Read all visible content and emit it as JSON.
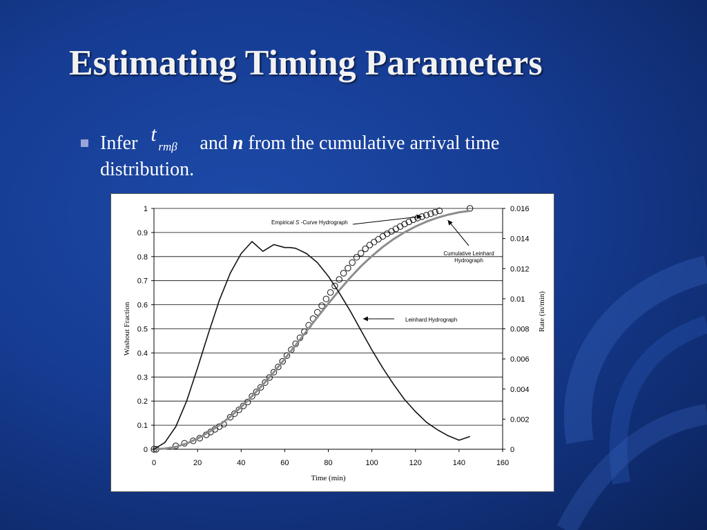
{
  "slide": {
    "title": "Estimating Timing Parameters",
    "bullet": {
      "pre": "Infer ",
      "math_symbol": "t",
      "math_subscript": "rmβ",
      "and_text": " and ",
      "n_symbol": "n",
      "post": " from the cumulative arrival time distribution."
    }
  },
  "chart_data": {
    "type": "scatter",
    "xlabel": "Time (min)",
    "ylabel": "Washout Fraction",
    "y2label": "Rate (in/min)",
    "xlim": [
      0,
      160
    ],
    "ylim": [
      0,
      1
    ],
    "y2lim": [
      0,
      0.016
    ],
    "x_ticks": [
      "0",
      "20",
      "40",
      "60",
      "80",
      "100",
      "120",
      "140",
      "160"
    ],
    "y_ticks": [
      "0",
      "0.1",
      "0.2",
      "0.3",
      "0.4",
      "0.5",
      "0.6",
      "0.7",
      "0.8",
      "0.9",
      "1"
    ],
    "y2_ticks": [
      "0",
      "0.002",
      "0.004",
      "0.006",
      "0.008",
      "0.01",
      "0.012",
      "0.014",
      "0.016"
    ],
    "grid": "horizontal",
    "series": [
      {
        "name": "Empirical S -Curve Hydrograph",
        "kind": "points",
        "axis": "left",
        "x": [
          0,
          1,
          10,
          14,
          18,
          21,
          24,
          26,
          28,
          30,
          32,
          35,
          37,
          39,
          41,
          43,
          45,
          47,
          49,
          51,
          53,
          55,
          57,
          59,
          61,
          63,
          65,
          67,
          69,
          71,
          73,
          75,
          77,
          79,
          81,
          83,
          85,
          87,
          89,
          91,
          93,
          95,
          97,
          99,
          101,
          103,
          105,
          107,
          109,
          111,
          113,
          115,
          117,
          119,
          121,
          123,
          125,
          127,
          129,
          131,
          145
        ],
        "y": [
          0,
          0,
          0.014,
          0.025,
          0.035,
          0.046,
          0.06,
          0.072,
          0.083,
          0.094,
          0.104,
          0.133,
          0.148,
          0.164,
          0.18,
          0.196,
          0.22,
          0.238,
          0.257,
          0.277,
          0.298,
          0.32,
          0.342,
          0.365,
          0.389,
          0.413,
          0.438,
          0.463,
          0.488,
          0.515,
          0.542,
          0.569,
          0.596,
          0.624,
          0.651,
          0.678,
          0.705,
          0.731,
          0.752,
          0.775,
          0.797,
          0.814,
          0.832,
          0.848,
          0.86,
          0.872,
          0.884,
          0.895,
          0.905,
          0.915,
          0.925,
          0.935,
          0.944,
          0.953,
          0.96,
          0.966,
          0.972,
          0.978,
          0.984,
          0.99,
          1.0
        ]
      },
      {
        "name": "Cumulative Leinhard Hydrograph",
        "kind": "line",
        "axis": "left",
        "x": [
          0,
          5,
          10,
          15,
          20,
          25,
          30,
          35,
          40,
          45,
          50,
          55,
          60,
          65,
          70,
          75,
          80,
          85,
          90,
          95,
          100,
          105,
          110,
          115,
          120,
          125,
          130,
          135,
          140,
          145
        ],
        "y": [
          0,
          0.003,
          0.01,
          0.024,
          0.044,
          0.07,
          0.1,
          0.135,
          0.175,
          0.22,
          0.268,
          0.32,
          0.375,
          0.432,
          0.49,
          0.548,
          0.605,
          0.66,
          0.712,
          0.76,
          0.802,
          0.84,
          0.873,
          0.901,
          0.925,
          0.945,
          0.961,
          0.974,
          0.984,
          0.99
        ]
      },
      {
        "name": "Leinhard Hydrograph",
        "kind": "line",
        "axis": "right",
        "x": [
          0,
          5,
          10,
          15,
          20,
          25,
          30,
          35,
          40,
          45,
          50,
          55,
          60,
          62.5,
          65,
          70,
          75,
          80,
          85,
          90,
          95,
          100,
          105,
          110,
          115,
          120,
          125,
          130,
          135,
          140,
          145
        ],
        "y": [
          0,
          0.00045,
          0.0015,
          0.0032,
          0.0054,
          0.0077,
          0.0099,
          0.0117,
          0.013,
          0.0138,
          0.01315,
          0.0136,
          0.0134,
          0.0134,
          0.01335,
          0.013,
          0.0124,
          0.0115,
          0.0104,
          0.0092,
          0.0079,
          0.0066,
          0.0054,
          0.0043,
          0.0033,
          0.0025,
          0.0018,
          0.0013,
          0.0009,
          0.0006,
          0.00085
        ]
      }
    ],
    "annotations": [
      {
        "text_pre": "Empirical ",
        "text_italic": "S",
        "text_post": " -Curve Hydrograph",
        "target_x": 121,
        "target_y": 0.97
      },
      {
        "text": "Cumulative Leinhard",
        "text2": "Hydrograph",
        "target_x": 138,
        "target_y": 0.98
      },
      {
        "text": "Leinhard Hydrograph",
        "target_x": 95,
        "target_y": 0.55
      }
    ]
  }
}
